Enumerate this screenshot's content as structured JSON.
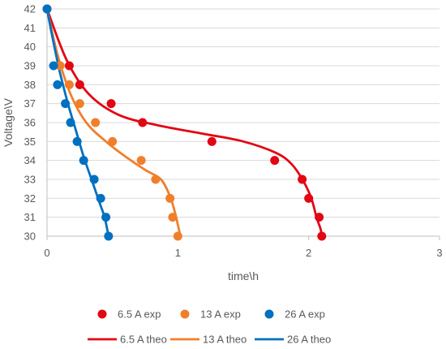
{
  "chart_data": {
    "type": "scatter",
    "title": "",
    "xlabel": "time\\h",
    "ylabel": "Voltage\\V",
    "xlim": [
      0,
      3
    ],
    "ylim": [
      30,
      42
    ],
    "xticks": [
      0,
      1,
      2,
      3
    ],
    "yticks": [
      30,
      31,
      32,
      33,
      34,
      35,
      36,
      37,
      38,
      39,
      40,
      41,
      42
    ],
    "grid": "horizontal",
    "legend": "bottom",
    "series": [
      {
        "name": "6.5 A exp",
        "kind": "points",
        "color": "#e30613",
        "x": [
          0,
          0.17,
          0.25,
          0.49,
          0.73,
          1.26,
          1.74,
          1.95,
          2.0,
          2.08,
          2.1
        ],
        "y": [
          42,
          39,
          38,
          37,
          36,
          35,
          34,
          33,
          32,
          31,
          30
        ]
      },
      {
        "name": "13 A exp",
        "kind": "points",
        "color": "#f07f2c",
        "x": [
          0,
          0.1,
          0.17,
          0.25,
          0.37,
          0.5,
          0.72,
          0.83,
          0.94,
          0.96,
          1.0
        ],
        "y": [
          42,
          39,
          38,
          37,
          36,
          35,
          34,
          33,
          32,
          31,
          30
        ]
      },
      {
        "name": "26 A exp",
        "kind": "points",
        "color": "#0070c0",
        "x": [
          0,
          0.05,
          0.08,
          0.14,
          0.18,
          0.23,
          0.28,
          0.36,
          0.41,
          0.45,
          0.47
        ],
        "y": [
          42,
          39,
          38,
          37,
          36,
          35,
          34,
          33,
          32,
          31,
          30
        ]
      },
      {
        "name": "6.5 A theo",
        "kind": "line",
        "color": "#e30613",
        "x": [
          0,
          0.15,
          0.32,
          0.55,
          0.85,
          1.2,
          1.5,
          1.75,
          1.87,
          1.96,
          2.02,
          2.06,
          2.09,
          2.1
        ],
        "y": [
          42,
          39.3,
          37.5,
          36.4,
          35.85,
          35.4,
          35.0,
          34.4,
          33.8,
          32.9,
          32.0,
          31.0,
          30.4,
          30.0
        ]
      },
      {
        "name": "13 A theo",
        "kind": "line",
        "color": "#f07f2c",
        "x": [
          0,
          0.08,
          0.18,
          0.3,
          0.45,
          0.6,
          0.75,
          0.87,
          0.94,
          0.98,
          1.0,
          1.02
        ],
        "y": [
          42,
          39.6,
          37.5,
          36.0,
          35.0,
          34.2,
          33.5,
          33.0,
          32.1,
          31.2,
          30.6,
          30.0
        ]
      },
      {
        "name": "26 A theo",
        "kind": "line",
        "color": "#0070c0",
        "x": [
          0,
          0.05,
          0.1,
          0.16,
          0.22,
          0.28,
          0.34,
          0.4,
          0.44,
          0.47
        ],
        "y": [
          42,
          40.2,
          38.6,
          37.0,
          35.6,
          34.2,
          33.0,
          31.8,
          31.0,
          30.0
        ]
      }
    ]
  }
}
